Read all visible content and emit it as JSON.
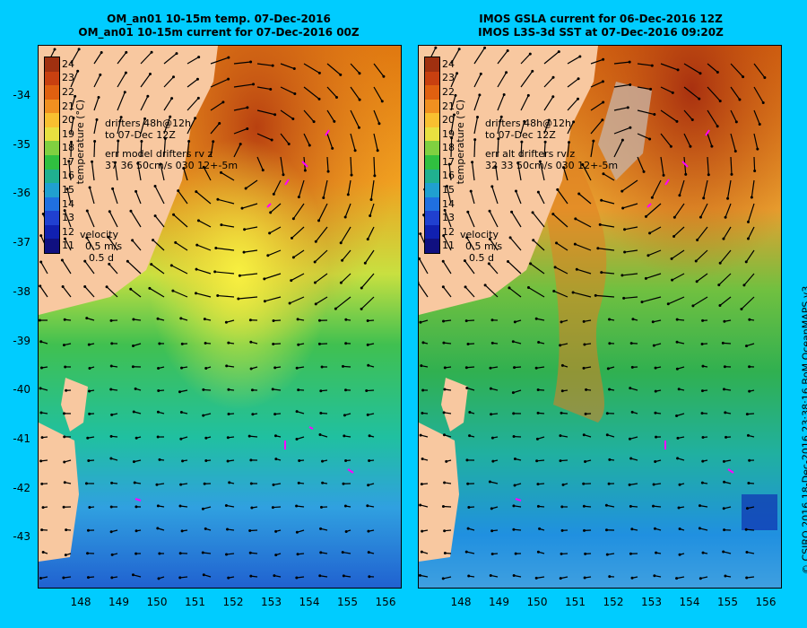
{
  "left": {
    "title1": "OM_an01 10-15m temp. 07-Dec-2016",
    "title2": "OM_an01 10-15m current for 07-Dec-2016 00Z",
    "legend_line1": "drifters 48h@12h",
    "legend_line2": "to 07-Dec 12Z",
    "legend_err1": "err model drifters rv z",
    "legend_err2": "37 36 50cm/s 030 12+-5m",
    "velocity_title": "velocity",
    "velocity_speed": "0.5 m/s",
    "velocity_time": "0.5 d"
  },
  "right": {
    "title1": "IMOS GSLA current for 06-Dec-2016 12Z",
    "title2": "IMOS L3S-3d SST at 07-Dec-2016 09:20Z",
    "legend_line1": "drifters 48h@12h",
    "legend_line2": "to 07-Dec 12Z",
    "legend_err1": "err alt drifters rv z",
    "legend_err2": "32 33 50cm/s 030 12+-5m",
    "velocity_title": "velocity",
    "velocity_speed": "0.5 m/s",
    "velocity_time": "0.5 d"
  },
  "colorbar": {
    "label": "temperature (°C)",
    "ticks": [
      "24",
      "23",
      "22",
      "21",
      "20",
      "19",
      "18",
      "17",
      "16",
      "15",
      "14",
      "13",
      "12",
      "11"
    ]
  },
  "axes": {
    "y_ticks": [
      "-34",
      "-35",
      "-36",
      "-37",
      "-38",
      "-39",
      "-40",
      "-41",
      "-42",
      "-43"
    ],
    "x_ticks": [
      "148",
      "149",
      "150",
      "151",
      "152",
      "153",
      "154",
      "155",
      "156"
    ]
  },
  "credit": "© CSIRO 2016   18-Dec-2016 23:38:16 BoM OceanMAPS v3"
}
